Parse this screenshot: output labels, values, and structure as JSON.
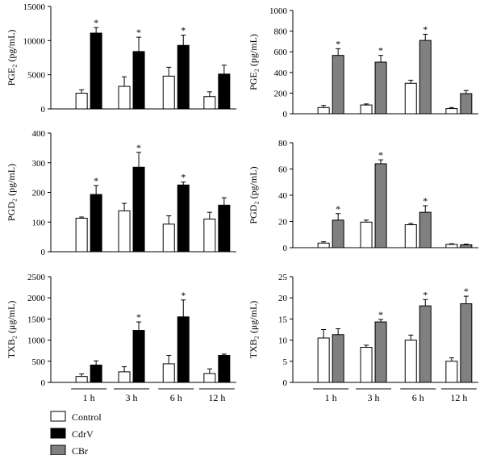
{
  "legend": [
    {
      "name": "Control",
      "color": "#ffffff"
    },
    {
      "name": "CdrV",
      "color": "#000000"
    },
    {
      "name": "CBr",
      "color": "#808080"
    }
  ],
  "chart_data": [
    {
      "id": "pge2-cdrv",
      "type": "bar",
      "ylabel": "PGE₂ (pg/mL)",
      "ylim": [
        0,
        15000
      ],
      "yticks": [
        0,
        5000,
        10000,
        15000
      ],
      "categories": [
        "1 h",
        "3 h",
        "6 h",
        "12 h"
      ],
      "show_xlabels": false,
      "series": [
        {
          "legend": "Control",
          "color": "#ffffff",
          "values": [
            2300,
            3300,
            4800,
            1800
          ],
          "errors": [
            500,
            1400,
            1300,
            700
          ],
          "sig": [
            false,
            false,
            false,
            false
          ]
        },
        {
          "legend": "CdrV",
          "color": "#000000",
          "values": [
            11100,
            8400,
            9300,
            5100
          ],
          "errors": [
            800,
            2100,
            1500,
            1300
          ],
          "sig": [
            true,
            true,
            true,
            false
          ]
        }
      ]
    },
    {
      "id": "pge2-cbr",
      "type": "bar",
      "ylabel": "PGE₂ (pg/mL)",
      "ylim": [
        0,
        1000
      ],
      "yticks": [
        0,
        200,
        400,
        600,
        800,
        1000
      ],
      "categories": [
        "1 h",
        "3 h",
        "6 h",
        "12 h"
      ],
      "show_xlabels": false,
      "series": [
        {
          "legend": "Control",
          "color": "#ffffff",
          "values": [
            60,
            85,
            295,
            50
          ],
          "errors": [
            20,
            10,
            30,
            10
          ],
          "sig": [
            false,
            false,
            false,
            false
          ]
        },
        {
          "legend": "CBr",
          "color": "#808080",
          "values": [
            565,
            500,
            710,
            195
          ],
          "errors": [
            65,
            65,
            60,
            30
          ],
          "sig": [
            true,
            true,
            true,
            false
          ]
        }
      ]
    },
    {
      "id": "pgd2-cdrv",
      "type": "bar",
      "ylabel": "PGD₂ (pg/mL)",
      "ylim": [
        0,
        400
      ],
      "yticks": [
        0,
        100,
        200,
        300,
        400
      ],
      "categories": [
        "1 h",
        "3 h",
        "6 h",
        "12 h"
      ],
      "show_xlabels": false,
      "series": [
        {
          "legend": "Control",
          "color": "#ffffff",
          "values": [
            113,
            138,
            93,
            110
          ],
          "errors": [
            4,
            25,
            28,
            23
          ],
          "sig": [
            false,
            false,
            false,
            false
          ]
        },
        {
          "legend": "CdrV",
          "color": "#000000",
          "values": [
            193,
            285,
            225,
            157
          ],
          "errors": [
            30,
            50,
            10,
            25
          ],
          "sig": [
            true,
            true,
            true,
            false
          ]
        }
      ]
    },
    {
      "id": "pgd2-cbr",
      "type": "bar",
      "ylabel": "PGD₂ (pg/mL)",
      "ylim": [
        0,
        80
      ],
      "yticks": [
        0,
        20,
        40,
        60,
        80
      ],
      "categories": [
        "1 h",
        "3 h",
        "6 h",
        "12 h"
      ],
      "show_xlabels": false,
      "series": [
        {
          "legend": "Control",
          "color": "#ffffff",
          "values": [
            3.5,
            19.5,
            17.5,
            2.5
          ],
          "errors": [
            1,
            1.5,
            1,
            0.5
          ],
          "sig": [
            false,
            false,
            false,
            false
          ]
        },
        {
          "legend": "CBr",
          "color": "#808080",
          "values": [
            21,
            64,
            27,
            2.2
          ],
          "errors": [
            5,
            3,
            5,
            0.5
          ],
          "sig": [
            true,
            true,
            true,
            false
          ]
        }
      ]
    },
    {
      "id": "txb2-cdrv",
      "type": "bar",
      "ylabel": "TXB₂ (μg/mL)",
      "ylim": [
        0,
        2500
      ],
      "yticks": [
        0,
        500,
        1000,
        1500,
        2000,
        2500
      ],
      "categories": [
        "1 h",
        "3 h",
        "6 h",
        "12 h"
      ],
      "show_xlabels": true,
      "series": [
        {
          "legend": "Control",
          "color": "#ffffff",
          "values": [
            140,
            250,
            440,
            210
          ],
          "errors": [
            60,
            120,
            200,
            110
          ],
          "sig": [
            false,
            false,
            false,
            false
          ]
        },
        {
          "legend": "CdrV",
          "color": "#000000",
          "values": [
            410,
            1230,
            1550,
            640
          ],
          "errors": [
            100,
            200,
            400,
            30
          ],
          "sig": [
            false,
            true,
            true,
            false
          ]
        }
      ]
    },
    {
      "id": "txb2-cbr",
      "type": "bar",
      "ylabel": "TXB₂ (μg/mL)",
      "ylim": [
        0,
        25
      ],
      "yticks": [
        0,
        5,
        10,
        15,
        20,
        25
      ],
      "categories": [
        "1 h",
        "3 h",
        "6 h",
        "12 h"
      ],
      "show_xlabels": true,
      "series": [
        {
          "legend": "Control",
          "color": "#ffffff",
          "values": [
            10.5,
            8.3,
            10,
            5
          ],
          "errors": [
            2,
            0.5,
            1.2,
            0.8
          ],
          "sig": [
            false,
            false,
            false,
            false
          ]
        },
        {
          "legend": "CBr",
          "color": "#808080",
          "values": [
            11.3,
            14.3,
            18.1,
            18.6
          ],
          "errors": [
            1.4,
            0.6,
            1.5,
            1.8
          ],
          "sig": [
            false,
            true,
            true,
            true
          ]
        }
      ]
    }
  ]
}
